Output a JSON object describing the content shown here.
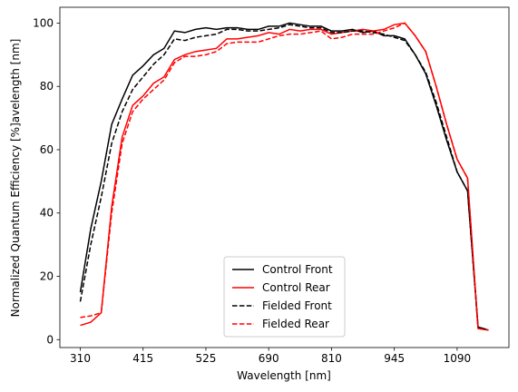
{
  "chart_data": {
    "type": "line",
    "xlabel": "Wavelength [nm]",
    "ylabel": "Normalized Quantum Efficiency [%]avelength [nm]",
    "categories": [
      "310",
      null,
      null,
      null,
      null,
      null,
      "415",
      null,
      null,
      null,
      null,
      null,
      "525",
      null,
      null,
      null,
      null,
      null,
      "690",
      null,
      null,
      null,
      null,
      null,
      "810",
      null,
      null,
      null,
      null,
      null,
      "945",
      null,
      null,
      null,
      null,
      null,
      "1090",
      null,
      null,
      null
    ],
    "series": [
      {
        "name": "Control Front",
        "color": "#000000",
        "linestyle": "solid",
        "values": [
          15,
          35,
          50,
          68,
          76,
          83.5,
          86.5,
          90,
          92,
          97.5,
          97,
          98,
          98.5,
          98,
          98.5,
          98.5,
          98,
          98,
          99,
          99,
          100,
          99.5,
          99,
          99,
          97.5,
          97.5,
          98,
          97,
          97.5,
          96,
          96,
          95,
          90,
          84,
          74,
          63,
          53,
          47,
          4,
          3
        ]
      },
      {
        "name": "Control Rear",
        "color": "#ff0000",
        "linestyle": "solid",
        "values": [
          4.5,
          5.5,
          8.5,
          42,
          64,
          74,
          77,
          81,
          83,
          88.5,
          90,
          91,
          91.5,
          92,
          95,
          95,
          95.5,
          96,
          97,
          96.5,
          98,
          97.5,
          98,
          98,
          96.5,
          97,
          97.5,
          98,
          97.5,
          98,
          99.5,
          100,
          96,
          91,
          80,
          68,
          57,
          51,
          3.5,
          3
        ]
      },
      {
        "name": "Fielded Front",
        "color": "#000000",
        "linestyle": "dashed",
        "values": [
          12,
          30,
          45,
          62,
          72,
          79,
          83,
          87,
          90,
          95,
          94.5,
          95.5,
          96,
          96.5,
          98,
          98,
          97.5,
          97.5,
          98,
          98.5,
          99.5,
          99,
          98.5,
          98.5,
          97,
          97,
          97.5,
          97.5,
          97,
          96.5,
          95.5,
          94.5,
          90,
          84.5,
          75,
          64,
          53,
          47,
          4,
          3
        ]
      },
      {
        "name": "Fielded Rear",
        "color": "#ff0000",
        "linestyle": "dashed",
        "values": [
          7,
          7.5,
          8.5,
          40,
          62,
          72,
          76,
          79,
          82,
          87.5,
          89.5,
          89.5,
          90,
          91,
          93.5,
          94,
          94,
          94,
          95,
          96,
          96.5,
          96.5,
          97,
          97.5,
          95,
          95.5,
          96.5,
          96.5,
          96.5,
          97.5,
          98.5,
          100,
          96,
          91,
          80,
          68,
          57,
          51,
          3.5,
          3
        ]
      }
    ],
    "ylim": [
      -2.5,
      105
    ],
    "yticks": [
      0,
      20,
      40,
      60,
      80,
      100
    ],
    "grid": false,
    "legend": "lower center"
  }
}
